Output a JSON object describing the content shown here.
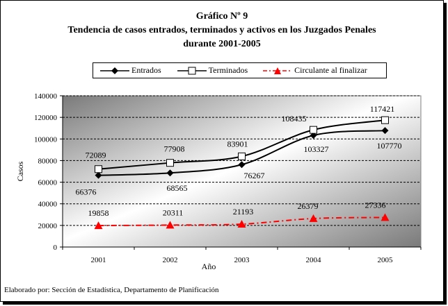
{
  "footer": "Elaborado por: Sección de Estadística, Departamento de Planificación",
  "chart_data": {
    "type": "line",
    "title_lines": [
      "Gráfico Nº 9",
      "Tendencia de casos entrados, terminados y activos en los Juzgados Penales",
      "durante 2001-2005"
    ],
    "xlabel": "Año",
    "ylabel": "Casos",
    "categories": [
      "2001",
      "2002",
      "2003",
      "2004",
      "2005"
    ],
    "ylim": [
      0,
      140000
    ],
    "yticks": [
      0,
      20000,
      40000,
      60000,
      80000,
      100000,
      120000,
      140000
    ],
    "ytick_labels": [
      "0",
      "20000",
      "40000",
      "60000",
      "80000",
      "100000",
      "120000",
      "140000"
    ],
    "grid": "horizontal dashed",
    "legend_position": "top",
    "series": [
      {
        "name": "Entrados",
        "values": [
          66376,
          68565,
          76267,
          103327,
          107770
        ],
        "labels": [
          "66376",
          "68565",
          "76267",
          "103327",
          "107770"
        ],
        "color": "#000000",
        "marker": "diamond",
        "line": "solid"
      },
      {
        "name": "Terminados",
        "values": [
          72089,
          77908,
          83901,
          108435,
          117421
        ],
        "labels": [
          "72089",
          "77908",
          "83901",
          "108435",
          "117421"
        ],
        "color": "#000000",
        "marker": "square",
        "line": "solid"
      },
      {
        "name": "Circulante al finalizar",
        "values": [
          19858,
          20311,
          21193,
          26379,
          27336
        ],
        "labels": [
          "19858",
          "20311",
          "21193",
          "26379",
          "27336"
        ],
        "color": "#ff0000",
        "marker": "triangle",
        "line": "dashdot"
      }
    ]
  }
}
